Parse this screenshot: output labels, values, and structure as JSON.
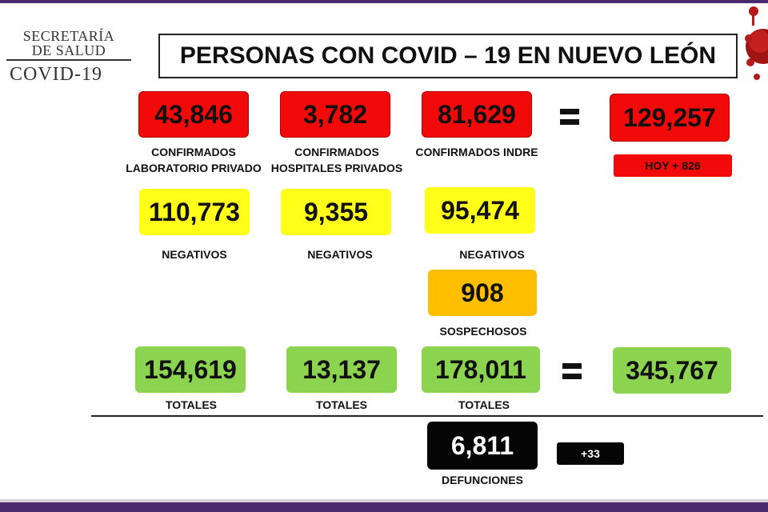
{
  "header": {
    "logo_line1": "SECRETARÍA",
    "logo_line2": "DE SALUD",
    "logo_line3": "COVID-19",
    "title": "PERSONAS CON COVID – 19 EN NUEVO LEÓN"
  },
  "confirmados": {
    "lab_privado": {
      "value": "43,846",
      "label": "CONFIRMADOS LABORATORIO PRIVADO"
    },
    "hosp_privados": {
      "value": "3,782",
      "label": "CONFIRMADOS HOSPITALES PRIVADOS"
    },
    "indre": {
      "value": "81,629",
      "label": "CONFIRMADOS INDRE"
    },
    "total": {
      "value": "129,257",
      "today": "HOY + 826"
    }
  },
  "negativos": {
    "lab_privado": {
      "value": "110,773",
      "label": "NEGATIVOS"
    },
    "hosp_privados": {
      "value": "9,355",
      "label": "NEGATIVOS"
    },
    "indre": {
      "value": "95,474",
      "label": "NEGATIVOS"
    }
  },
  "sospechosos": {
    "value": "908",
    "label": "SOSPECHOSOS"
  },
  "totales": {
    "lab_privado": {
      "value": "154,619",
      "label": "TOTALES"
    },
    "hosp_privados": {
      "value": "13,137",
      "label": "TOTALES"
    },
    "indre": {
      "value": "178,011",
      "label": "TOTALES"
    },
    "grand_total": {
      "value": "345,767"
    }
  },
  "defunciones": {
    "value": "6,811",
    "label": "DEFUNCIONES",
    "delta": "+33"
  },
  "colors": {
    "red": "#f20a0a",
    "yellow": "#ffff1a",
    "orange": "#ffbf00",
    "green": "#8cd450",
    "black": "#050505",
    "frame": "#4a2c6e"
  }
}
